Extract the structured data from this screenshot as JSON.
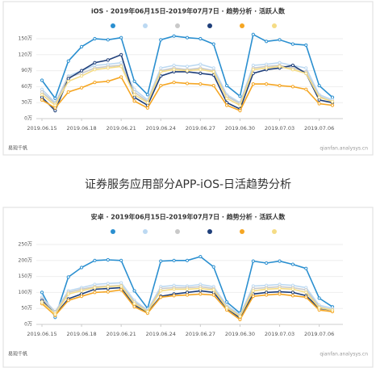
{
  "caption": "证券服务应用部分APP-iOS-日活趋势分析",
  "chart_data": [
    {
      "type": "line",
      "title": "iOS · 2019年06月15日-2019年07月7日 · 趋势分析 · 活跃人数",
      "categories": [
        "2019.06.15",
        null,
        null,
        "2019.06.18",
        null,
        null,
        "2019.06.21",
        null,
        null,
        "2019.06.24",
        null,
        null,
        "2019.06.27",
        null,
        null,
        "2019.06.30",
        null,
        null,
        "2019.07.03",
        null,
        null,
        "2019.07.06",
        null
      ],
      "ylim": [
        0,
        150
      ],
      "yticks": [
        {
          "value": 0,
          "label": "0万"
        },
        {
          "value": 30,
          "label": "30万"
        },
        {
          "value": 60,
          "label": "60万"
        },
        {
          "value": 90,
          "label": "90万"
        },
        {
          "value": 120,
          "label": "120万"
        },
        {
          "value": 150,
          "label": "150万"
        }
      ],
      "grid": true,
      "logo": "易观千帆",
      "url": "qianfan.analysys.cn",
      "series": [
        {
          "color": "#2a8fd0",
          "values": [
            72,
            38,
            108,
            135,
            150,
            148,
            152,
            70,
            45,
            148,
            155,
            152,
            150,
            140,
            62,
            42,
            158,
            145,
            148,
            140,
            138,
            62,
            40
          ]
        },
        {
          "color": "#bcd9f2",
          "values": [
            55,
            30,
            80,
            90,
            100,
            102,
            105,
            55,
            35,
            95,
            100,
            98,
            102,
            95,
            45,
            30,
            100,
            102,
            105,
            100,
            95,
            45,
            35
          ]
        },
        {
          "color": "#c9c9c9",
          "values": [
            50,
            28,
            78,
            85,
            95,
            98,
            100,
            50,
            32,
            90,
            95,
            92,
            95,
            90,
            42,
            28,
            95,
            98,
            100,
            95,
            88,
            42,
            32
          ]
        },
        {
          "color": "#1f3f7a",
          "values": [
            40,
            15,
            75,
            90,
            105,
            110,
            120,
            40,
            25,
            80,
            88,
            88,
            85,
            82,
            30,
            18,
            85,
            92,
            95,
            100,
            85,
            35,
            30
          ]
        },
        {
          "color": "#f5a623",
          "values": [
            35,
            20,
            50,
            58,
            68,
            70,
            78,
            33,
            20,
            62,
            68,
            66,
            65,
            62,
            25,
            15,
            65,
            65,
            62,
            60,
            55,
            28,
            25
          ]
        },
        {
          "color": "#f5dc85",
          "values": [
            45,
            25,
            70,
            80,
            92,
            95,
            98,
            45,
            30,
            88,
            92,
            90,
            92,
            88,
            38,
            25,
            92,
            95,
            98,
            92,
            85,
            40,
            32
          ]
        }
      ]
    },
    {
      "type": "line",
      "title": "安卓 · 2019年06月15日-2019年07月7日 · 趋势分析 · 活跃人数",
      "categories": [
        "2019.06.15",
        null,
        null,
        "2019.06.18",
        null,
        null,
        "2019.06.21",
        null,
        null,
        "2019.06.24",
        null,
        null,
        "2019.06.27",
        null,
        null,
        "2019.06.30",
        null,
        null,
        "2019.07.03",
        null,
        null,
        "2019.07.06",
        null
      ],
      "ylim": [
        0,
        250
      ],
      "yticks": [
        {
          "value": 0,
          "label": "0万"
        },
        {
          "value": 50,
          "label": "50万"
        },
        {
          "value": 100,
          "label": "100万"
        },
        {
          "value": 150,
          "label": "150万"
        },
        {
          "value": 200,
          "label": "200万"
        },
        {
          "value": 250,
          "label": "250万"
        }
      ],
      "grid": true,
      "logo": "易观千帆",
      "url": "qianfan.analysys.cn",
      "series": [
        {
          "color": "#2a8fd0",
          "values": [
            100,
            22,
            148,
            178,
            200,
            202,
            200,
            105,
            50,
            198,
            200,
            200,
            212,
            180,
            70,
            35,
            198,
            192,
            198,
            188,
            175,
            82,
            55
          ]
        },
        {
          "color": "#bcd9f2",
          "values": [
            85,
            40,
            105,
            115,
            125,
            128,
            130,
            75,
            45,
            118,
            122,
            120,
            125,
            118,
            60,
            30,
            120,
            122,
            125,
            122,
            115,
            60,
            50
          ]
        },
        {
          "color": "#c9c9c9",
          "values": [
            80,
            38,
            100,
            110,
            118,
            120,
            122,
            70,
            42,
            112,
            115,
            115,
            118,
            112,
            55,
            28,
            112,
            115,
            118,
            115,
            108,
            55,
            45
          ]
        },
        {
          "color": "#1f3f7a",
          "values": [
            75,
            30,
            80,
            95,
            110,
            112,
            115,
            60,
            38,
            88,
            95,
            100,
            105,
            100,
            50,
            20,
            95,
            100,
            102,
            100,
            90,
            50,
            45
          ]
        },
        {
          "color": "#f5a623",
          "values": [
            65,
            28,
            75,
            88,
            100,
            102,
            108,
            55,
            35,
            85,
            90,
            92,
            95,
            92,
            45,
            15,
            88,
            92,
            95,
            90,
            85,
            45,
            40
          ]
        },
        {
          "color": "#f5dc85",
          "values": [
            70,
            32,
            95,
            105,
            115,
            118,
            120,
            65,
            40,
            105,
            110,
            110,
            112,
            108,
            52,
            25,
            105,
            110,
            112,
            110,
            100,
            52,
            45
          ]
        }
      ]
    }
  ]
}
